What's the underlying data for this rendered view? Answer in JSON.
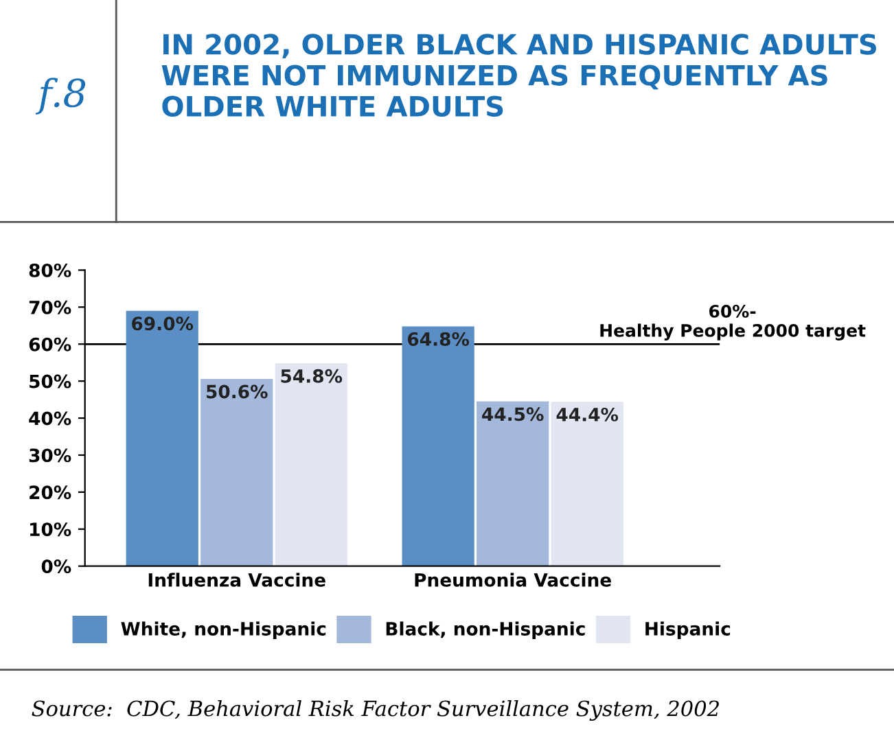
{
  "chart_data": {
    "type": "bar",
    "title": "IN 2002, OLDER BLACK AND HISPANIC ADULTS WERE NOT IMMUNIZED AS FREQUENTLY AS OLDER WHITE ADULTS",
    "categories": [
      "Influenza Vaccine",
      "Pneumonia Vaccine"
    ],
    "series": [
      {
        "name": "White, non-Hispanic",
        "color": "#5b8ec4",
        "values": [
          69.0,
          64.8
        ],
        "value_labels": [
          "69.0%",
          "64.8%"
        ]
      },
      {
        "name": "Black, non-Hispanic",
        "color": "#a3b8db",
        "values": [
          50.6,
          44.5
        ],
        "value_labels": [
          "50.6%",
          "44.5%"
        ]
      },
      {
        "name": "Hispanic",
        "color": "#e2e6f2",
        "values": [
          54.8,
          44.4
        ],
        "value_labels": [
          "54.8%",
          "44.4%"
        ]
      }
    ],
    "ylim": [
      0,
      80
    ],
    "yticks": [
      {
        "value": 0,
        "label": "0%"
      },
      {
        "value": 10,
        "label": "10%"
      },
      {
        "value": 20,
        "label": "20%"
      },
      {
        "value": 30,
        "label": "30%"
      },
      {
        "value": 40,
        "label": "40%"
      },
      {
        "value": 50,
        "label": "50%"
      },
      {
        "value": 60,
        "label": "60%"
      },
      {
        "value": 70,
        "label": "70%"
      },
      {
        "value": 80,
        "label": "80%"
      }
    ],
    "ref_lines": [
      {
        "axis": "y",
        "value": 60,
        "label": "60%-\nHealthy People 2000 target",
        "color": "#000000"
      }
    ],
    "legend": "bottom",
    "grid": false,
    "annotations": [
      "f.8",
      "Source:  CDC, Behavioral Risk Factor Surveillance System, 2002"
    ]
  }
}
